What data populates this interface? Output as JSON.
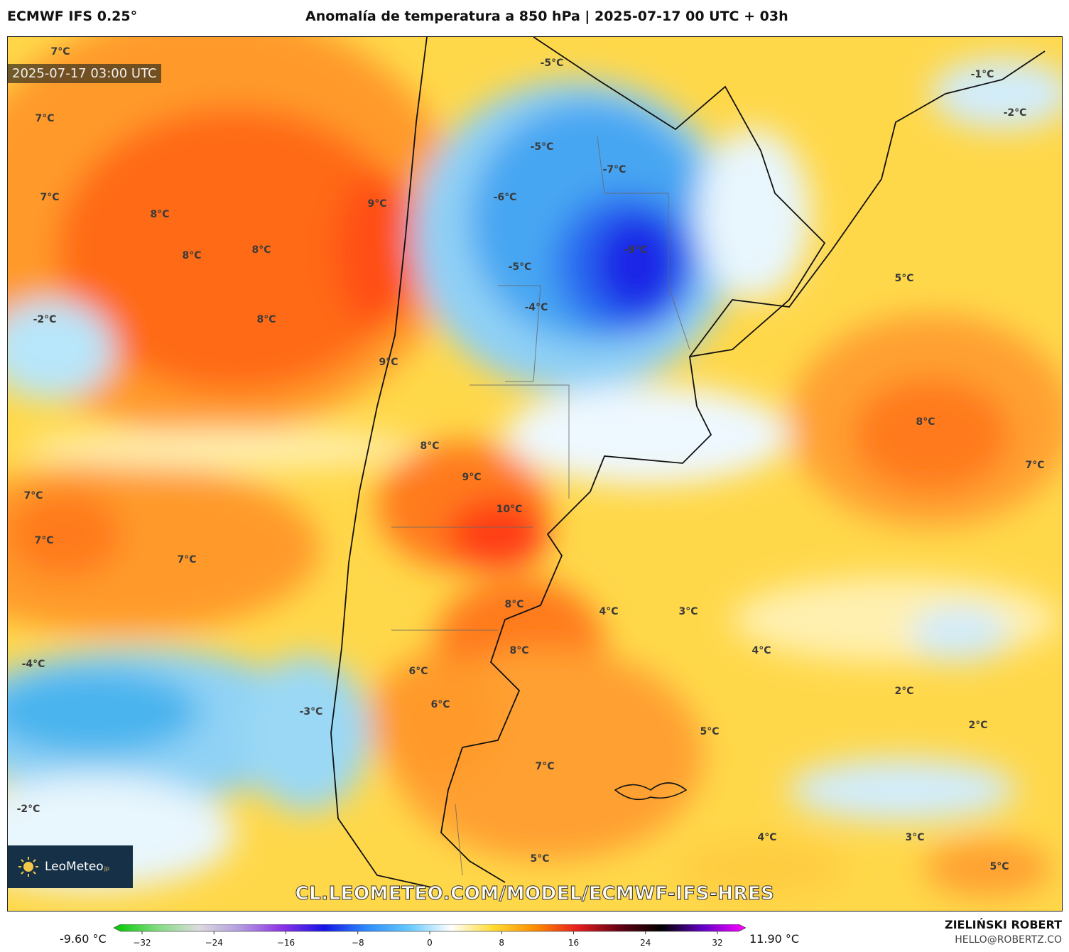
{
  "header": {
    "model": "ECMWF IFS 0.25°",
    "title": "Anomalía de temperatura a 850 hPa | 2025-07-17 00 UTC + 03h"
  },
  "map": {
    "timestamp": "2025-07-17 03:00 UTC",
    "watermark": "CL.LEOMETEO.COM/MODEL/ECMWF-IFS-HRES",
    "logo_text": "LeoMeteo",
    "logo_sup": "jp",
    "labels": [
      {
        "text": "7°C"
      },
      {
        "text": "7°C"
      },
      {
        "text": "7°C"
      },
      {
        "text": "8°C"
      },
      {
        "text": "8°C"
      },
      {
        "text": "8°C"
      },
      {
        "text": "9°C"
      },
      {
        "text": "-2°C"
      },
      {
        "text": "8°C"
      },
      {
        "text": "9°C"
      },
      {
        "text": "-5°C"
      },
      {
        "text": "-5°C"
      },
      {
        "text": "-6°C"
      },
      {
        "text": "-7°C"
      },
      {
        "text": "-9°C"
      },
      {
        "text": "-5°C"
      },
      {
        "text": "-4°C"
      },
      {
        "text": "-1°C"
      },
      {
        "text": "-2°C"
      },
      {
        "text": "5°C"
      },
      {
        "text": "8°C"
      },
      {
        "text": "7°C"
      },
      {
        "text": "8°C"
      },
      {
        "text": "9°C"
      },
      {
        "text": "10°C"
      },
      {
        "text": "7°C"
      },
      {
        "text": "7°C"
      },
      {
        "text": "7°C"
      },
      {
        "text": "8°C"
      },
      {
        "text": "4°C"
      },
      {
        "text": "3°C"
      },
      {
        "text": "4°C"
      },
      {
        "text": "8°C"
      },
      {
        "text": "-4°C"
      },
      {
        "text": "6°C"
      },
      {
        "text": "6°C"
      },
      {
        "text": "-3°C"
      },
      {
        "text": "2°C"
      },
      {
        "text": "2°C"
      },
      {
        "text": "5°C"
      },
      {
        "text": "7°C"
      },
      {
        "text": "-2°C"
      },
      {
        "text": "4°C"
      },
      {
        "text": "3°C"
      },
      {
        "text": "5°C"
      },
      {
        "text": "5°C"
      }
    ]
  },
  "colorbar": {
    "min_label": "-9.60 °C",
    "max_label": "11.90 °C",
    "ticks": [
      "−32",
      "−24",
      "−16",
      "−8",
      "0",
      "8",
      "16",
      "24",
      "32"
    ],
    "stops": [
      "#00c800",
      "#7ddc7d",
      "#dcdcdc",
      "#b49be0",
      "#8c32e6",
      "#1414e6",
      "#2d8cff",
      "#64c8ff",
      "#ffffff",
      "#ffdc32",
      "#ff8c00",
      "#e61e1e",
      "#640014",
      "#000000",
      "#6400c8",
      "#ff00ff"
    ]
  },
  "footer": {
    "author": "ZIELIŃSKI ROBERT",
    "email": "HELLO@ROBERTZ.CO"
  }
}
